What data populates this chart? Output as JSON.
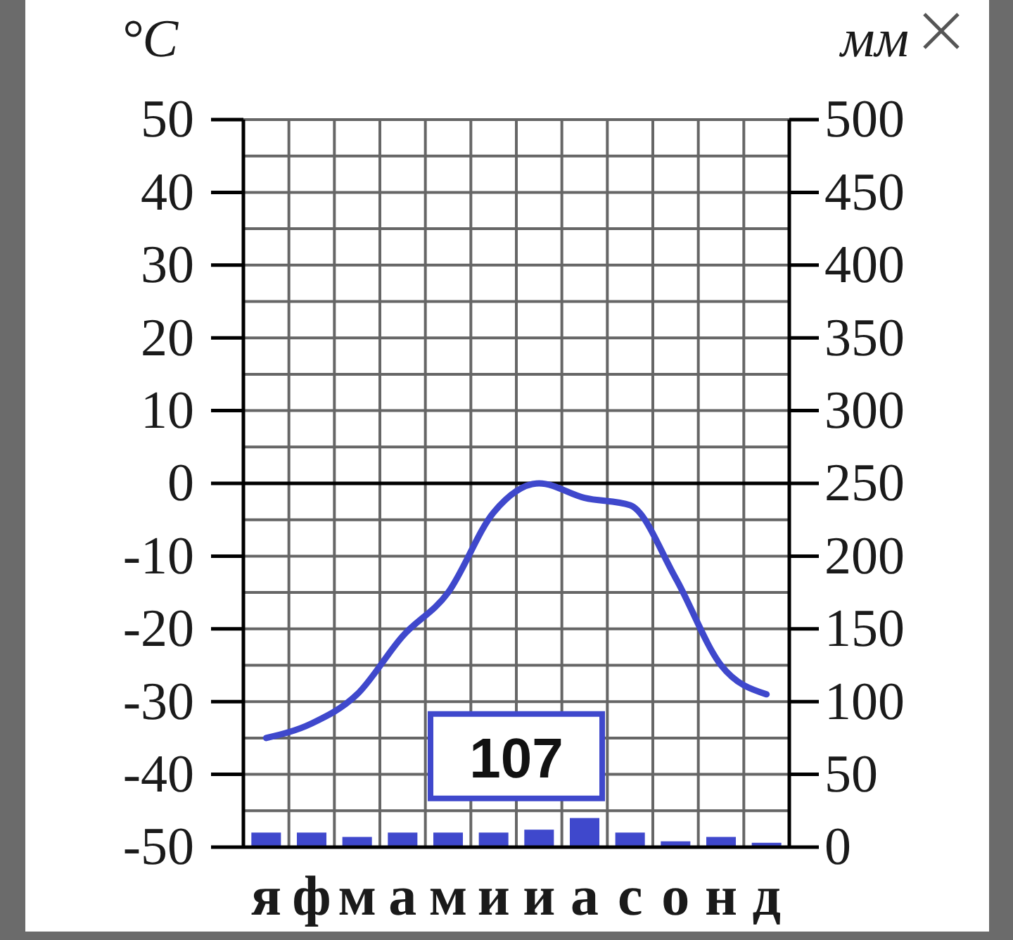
{
  "chart_data": {
    "type": "bar",
    "ylabel": "°C",
    "y2label": "мм",
    "categories": [
      "я",
      "ф",
      "м",
      "а",
      "м",
      "и",
      "и",
      "а",
      "с",
      "о",
      "н",
      "д"
    ],
    "series": [
      {
        "axis": "y2",
        "color": "#3f48cc",
        "values": [
          10,
          10,
          7,
          10,
          10,
          10,
          12,
          20,
          10,
          4,
          7,
          3
        ]
      },
      {
        "type": "line",
        "axis": "y",
        "color": "#3f48cc",
        "values": [
          -35,
          -33,
          -29,
          -21,
          -15,
          -4,
          0,
          -2,
          -3,
          -13,
          -25,
          -29
        ]
      }
    ],
    "ylim": [
      -50,
      50
    ],
    "yticks": [
      -50,
      {
        "value": -45,
        "label": null
      },
      -40,
      {
        "value": -35,
        "label": null
      },
      -30,
      {
        "value": -25,
        "label": null
      },
      -20,
      {
        "value": -15,
        "label": null
      },
      -10,
      {
        "value": -5,
        "label": null
      },
      0,
      {
        "value": 5,
        "label": null
      },
      10,
      {
        "value": 15,
        "label": null
      },
      20,
      {
        "value": 25,
        "label": null
      },
      30,
      {
        "value": 35,
        "label": null
      },
      40,
      {
        "value": 45,
        "label": null
      },
      50
    ],
    "y2lim": [
      0,
      500
    ],
    "y2ticks": [
      0,
      50,
      100,
      150,
      200,
      250,
      300,
      350,
      400,
      450,
      500
    ],
    "grid": true,
    "ref_lines": [
      {
        "axis": "y",
        "value": 0,
        "color": "#000000"
      }
    ],
    "annotations": [
      "107"
    ]
  }
}
